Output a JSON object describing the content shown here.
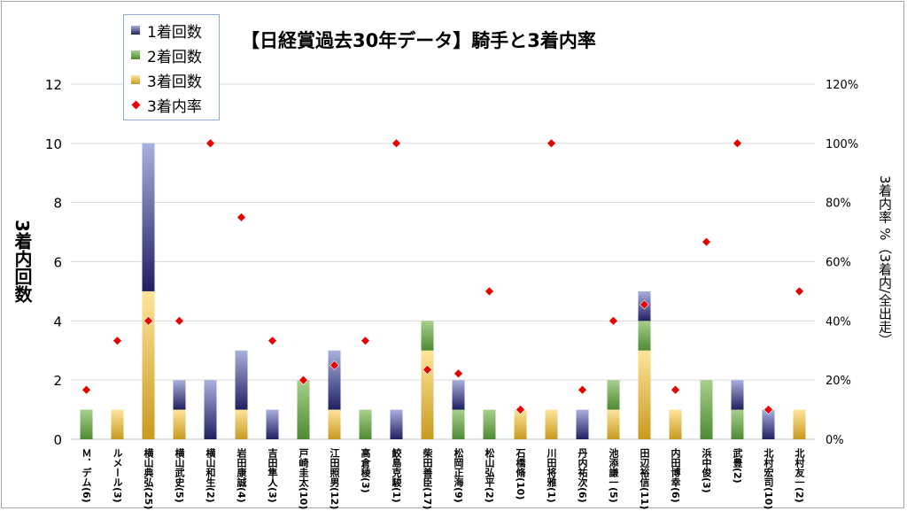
{
  "title": "【日経賞過去30年データ】騎手と3着内率",
  "legend": {
    "first": "1着回数",
    "second": "2着回数",
    "third": "3着回数",
    "rate": "3着内率"
  },
  "colors": {
    "first_top": "#a9b1de",
    "first_bottom": "#1f2060",
    "second_top": "#a8d08d",
    "second_bottom": "#4e8a33",
    "third_top": "#ffe49b",
    "third_bottom": "#c79a20",
    "rate_marker": "#e60000",
    "grid": "#d9d9d9"
  },
  "y_title_left": "3着内回数",
  "y_title_right": "3着内率 %（3着内/全出走）",
  "chart_data": {
    "type": "bar",
    "stacked": true,
    "title": "【日経賞過去30年データ】騎手と3着内率",
    "categories": [
      "Ｍ．デム(6)",
      "ルメール(3)",
      "横山典弘(25)",
      "横山武史(5)",
      "横山和生(2)",
      "岩田康誠(4)",
      "吉田隼人(3)",
      "戸崎圭太(10)",
      "江田照男(12)",
      "高倉稜(3)",
      "鮫島克駿(1)",
      "柴田善臣(17)",
      "松岡正海(9)",
      "松山弘平(2)",
      "石橋脩(10)",
      "川田将雅(1)",
      "丹内祐次(6)",
      "池添謙一(5)",
      "田辺裕信(11)",
      "内田博幸(6)",
      "浜中俊(3)",
      "武豊(2)",
      "北村宏司(10)",
      "北村友一(2)"
    ],
    "series": [
      {
        "name": "1着回数",
        "values": [
          0,
          0,
          5,
          1,
          2,
          2,
          1,
          0,
          2,
          0,
          1,
          0,
          1,
          0,
          0,
          0,
          1,
          0,
          1,
          0,
          0,
          1,
          1,
          0
        ]
      },
      {
        "name": "2着回数",
        "values": [
          1,
          0,
          0,
          0,
          0,
          0,
          0,
          2,
          0,
          1,
          0,
          1,
          1,
          1,
          0,
          0,
          0,
          1,
          1,
          0,
          2,
          1,
          0,
          0
        ]
      },
      {
        "name": "3着回数",
        "values": [
          0,
          1,
          5,
          1,
          0,
          1,
          0,
          0,
          1,
          0,
          0,
          3,
          0,
          0,
          1,
          1,
          0,
          1,
          3,
          1,
          0,
          0,
          0,
          1
        ]
      },
      {
        "name": "3着内率",
        "values": [
          16.7,
          33.3,
          40,
          40,
          100,
          75,
          33.3,
          20,
          25,
          33.3,
          100,
          23.5,
          22.2,
          50,
          10,
          100,
          16.7,
          40,
          45.5,
          16.7,
          66.7,
          100,
          10,
          50
        ]
      }
    ],
    "y_left": {
      "min": 0,
      "max": 12,
      "ticks": [
        "0",
        "2",
        "4",
        "6",
        "8",
        "10",
        "12"
      ]
    },
    "y_right": {
      "min": 0,
      "max": 120,
      "ticks": [
        "0%",
        "20%",
        "40%",
        "60%",
        "80%",
        "100%",
        "120%"
      ]
    },
    "grid": true,
    "legend_position": "top-left"
  }
}
